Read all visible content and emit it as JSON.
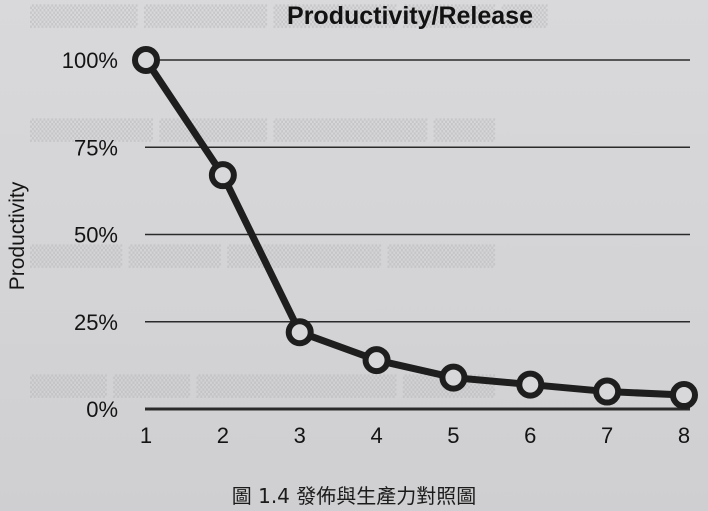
{
  "caption": "圖 1.4 發佈與生產力對照圖",
  "chart_data": {
    "type": "line",
    "title": "Productivity/Release",
    "xlabel": "",
    "ylabel": "Productivity",
    "x": [
      1,
      2,
      3,
      4,
      5,
      6,
      7,
      8
    ],
    "series": [
      {
        "values": [
          100,
          67,
          22,
          14,
          9,
          7,
          5,
          4
        ]
      }
    ],
    "ylim": [
      0,
      100
    ],
    "xlim": [
      1,
      8
    ],
    "y_ticks": [
      "0%",
      "25%",
      "50%",
      "75%",
      "100%"
    ],
    "x_ticks": [
      "1",
      "2",
      "3",
      "4",
      "5",
      "6",
      "7",
      "8"
    ],
    "grid": true,
    "colors": {
      "line": "#1e1e1e",
      "marker_fill": "#d8d8da",
      "grid": "#2a2a2a"
    }
  }
}
